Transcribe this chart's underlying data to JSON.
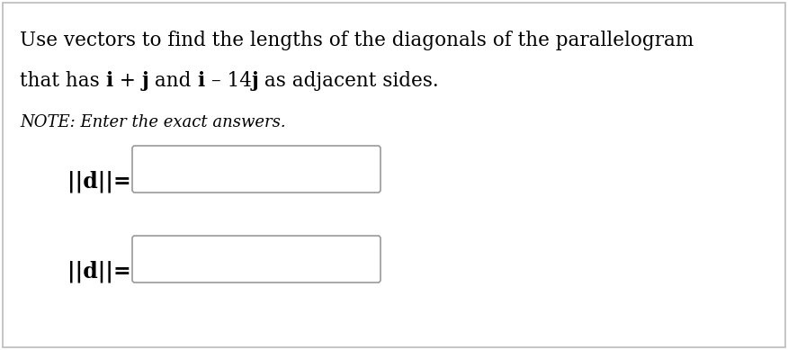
{
  "line1": "Use vectors to find the lengths of the diagonals of the parallelogram",
  "line2_segments": [
    {
      "text": "that has ",
      "bold": false
    },
    {
      "text": "i",
      "bold": true
    },
    {
      "text": " + ",
      "bold": false
    },
    {
      "text": "j",
      "bold": true
    },
    {
      "text": " and ",
      "bold": false
    },
    {
      "text": "i",
      "bold": true
    },
    {
      "text": " – 14",
      "bold": false
    },
    {
      "text": "j",
      "bold": true
    },
    {
      "text": " as adjacent sides.",
      "bold": false
    }
  ],
  "note": "NOTE: Enter the exact answers.",
  "label1": "||d||=",
  "label2": "||d||=",
  "bg_color": "#ffffff",
  "border_color": "#bbbbbb",
  "box_border_color": "#999999",
  "text_color": "#000000",
  "font_size_title": 15.5,
  "font_size_note": 13,
  "font_size_label": 17
}
